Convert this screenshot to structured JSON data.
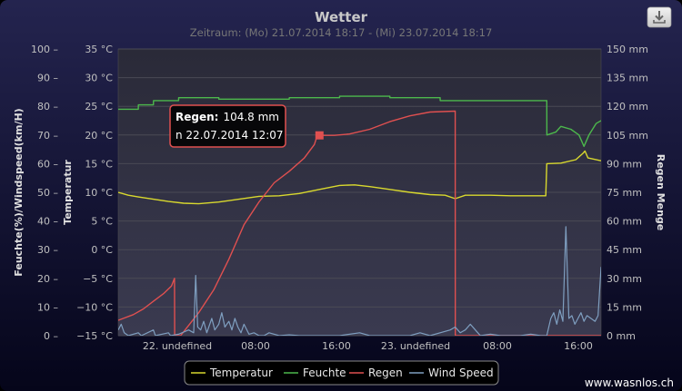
{
  "chart_data": {
    "type": "line",
    "title": "Wetter",
    "subtitle": "Zeitraum: (Mo) 21.07.2014 18:17 - (Mi) 23.07.2014 18:17",
    "x_tick_labels": [
      "22. undefined",
      "08:00",
      "16:00",
      "23. undefined",
      "08:00",
      "16:00"
    ],
    "y_axes": [
      {
        "title": "Feuchte(%)/Windspeed(km/H)",
        "side": "left-outer",
        "ticks": [
          "100 –",
          "90 –",
          "80 –",
          "70 –",
          "60 –",
          "50 –",
          "40 –",
          "30 –",
          "20 –",
          "10 –",
          "0 –"
        ],
        "range": [
          0,
          100
        ]
      },
      {
        "title": "Temperatur",
        "side": "left-inner",
        "ticks": [
          "35 °C",
          "30 °C",
          "25 °C",
          "20 °C",
          "15 °C",
          "10 °C",
          "5 °C",
          "0 °C",
          "−5 °C",
          "−10 °C",
          "−15 °C"
        ],
        "range": [
          -15,
          35
        ]
      },
      {
        "title": "Regen Menge",
        "side": "right",
        "ticks": [
          "150 mm",
          "135 mm",
          "120 mm",
          "105 mm",
          "90 mm",
          "75 mm",
          "60 mm",
          "45 mm",
          "30 mm",
          "15 mm",
          "0 mm"
        ],
        "range": [
          0,
          150
        ]
      }
    ],
    "x_axis": {
      "unit": "hours since first data point",
      "range": [
        0,
        48
      ]
    },
    "series": [
      {
        "name": "Temperatur",
        "color": "#d9d92e",
        "axis": "Temperatur",
        "points": [
          [
            0,
            10
          ],
          [
            1,
            9.5
          ],
          [
            2,
            9.2
          ],
          [
            3.5,
            8.8
          ],
          [
            5,
            8.4
          ],
          [
            6.5,
            8.1
          ],
          [
            8,
            8.0
          ],
          [
            10,
            8.3
          ],
          [
            12,
            8.8
          ],
          [
            14,
            9.3
          ],
          [
            16,
            9.4
          ],
          [
            18,
            9.8
          ],
          [
            20,
            10.5
          ],
          [
            22,
            11.2
          ],
          [
            23.5,
            11.3
          ],
          [
            25,
            11.0
          ],
          [
            27,
            10.5
          ],
          [
            29,
            10.0
          ],
          [
            31,
            9.6
          ],
          [
            32.5,
            9.5
          ],
          [
            33.5,
            8.9
          ],
          [
            34.5,
            9.5
          ],
          [
            37,
            9.5
          ],
          [
            39,
            9.4
          ],
          [
            40.7,
            9.4
          ],
          [
            42.5,
            9.4
          ],
          [
            42.6,
            15.0
          ],
          [
            44,
            15.1
          ],
          [
            45.5,
            15.7
          ],
          [
            46.2,
            16.8
          ],
          [
            46.4,
            17.2
          ],
          [
            46.7,
            16.0
          ],
          [
            48,
            15.5
          ]
        ]
      },
      {
        "name": "Feuchte",
        "color": "#4cb84c",
        "axis": "Feuchte(%)/Windspeed(km/H)",
        "points": [
          [
            0,
            79
          ],
          [
            2,
            79
          ],
          [
            2.01,
            80.5
          ],
          [
            3.5,
            80.5
          ],
          [
            3.51,
            82
          ],
          [
            6,
            82
          ],
          [
            6.01,
            83
          ],
          [
            10,
            83
          ],
          [
            10.01,
            82.5
          ],
          [
            17,
            82.5
          ],
          [
            17.01,
            83
          ],
          [
            22,
            83
          ],
          [
            22.01,
            83.5
          ],
          [
            27,
            83.5
          ],
          [
            27.01,
            83
          ],
          [
            32,
            83
          ],
          [
            32.01,
            82
          ],
          [
            40,
            82
          ],
          [
            42,
            82
          ],
          [
            42.6,
            82
          ],
          [
            42.61,
            70
          ],
          [
            43.5,
            71
          ],
          [
            44,
            73
          ],
          [
            45,
            72
          ],
          [
            45.8,
            70
          ],
          [
            46.3,
            66
          ],
          [
            46.8,
            70
          ],
          [
            47.5,
            74
          ],
          [
            48,
            75
          ]
        ]
      },
      {
        "name": "Regen",
        "color": "#e05050",
        "axis": "Regen Menge",
        "points": [
          [
            0,
            8
          ],
          [
            0.5,
            9
          ],
          [
            1.5,
            11
          ],
          [
            2.5,
            14
          ],
          [
            3.5,
            18
          ],
          [
            4.5,
            22
          ],
          [
            5.3,
            26
          ],
          [
            5.6,
            30
          ],
          [
            5.61,
            0
          ],
          [
            6.2,
            0
          ],
          [
            6.8,
            4
          ],
          [
            8,
            12
          ],
          [
            9.5,
            24
          ],
          [
            11,
            40
          ],
          [
            12.5,
            58
          ],
          [
            14,
            70
          ],
          [
            15.5,
            80
          ],
          [
            17,
            86
          ],
          [
            18.5,
            93
          ],
          [
            19.5,
            100
          ],
          [
            19.8,
            104.8
          ],
          [
            21.5,
            104.8
          ],
          [
            23,
            105.5
          ],
          [
            25,
            108
          ],
          [
            27,
            112
          ],
          [
            29,
            115
          ],
          [
            31,
            117
          ],
          [
            33.5,
            117.5
          ],
          [
            33.51,
            0
          ],
          [
            48,
            0
          ]
        ]
      },
      {
        "name": "Wind Speed",
        "color": "#7f9fc0",
        "axis": "Feuchte(%)/Windspeed(km/H)",
        "points": [
          [
            0,
            2
          ],
          [
            0.3,
            4
          ],
          [
            0.6,
            1
          ],
          [
            1,
            0
          ],
          [
            2,
            1
          ],
          [
            2.3,
            0
          ],
          [
            3.5,
            2
          ],
          [
            3.7,
            0
          ],
          [
            5,
            1
          ],
          [
            5.2,
            0
          ],
          [
            6,
            0.5
          ],
          [
            7,
            2
          ],
          [
            7.5,
            1
          ],
          [
            7.7,
            21
          ],
          [
            7.9,
            3
          ],
          [
            8.2,
            2
          ],
          [
            8.5,
            5
          ],
          [
            8.8,
            1
          ],
          [
            9,
            3
          ],
          [
            9.3,
            6
          ],
          [
            9.6,
            2
          ],
          [
            10,
            4
          ],
          [
            10.3,
            8
          ],
          [
            10.6,
            3
          ],
          [
            11,
            5
          ],
          [
            11.3,
            2
          ],
          [
            11.6,
            6
          ],
          [
            11.9,
            3
          ],
          [
            12.2,
            1
          ],
          [
            12.5,
            4
          ],
          [
            13,
            0.5
          ],
          [
            13.5,
            1
          ],
          [
            14,
            0
          ],
          [
            14.5,
            0
          ],
          [
            15,
            1
          ],
          [
            16,
            0
          ],
          [
            17,
            0.3
          ],
          [
            18,
            0
          ],
          [
            19,
            0
          ],
          [
            20,
            0
          ],
          [
            22,
            0
          ],
          [
            24,
            1
          ],
          [
            25,
            0
          ],
          [
            27,
            0
          ],
          [
            29,
            0
          ],
          [
            30,
            1
          ],
          [
            31,
            0
          ],
          [
            33,
            2
          ],
          [
            33.5,
            3
          ],
          [
            34,
            1
          ],
          [
            34.5,
            2
          ],
          [
            35,
            4
          ],
          [
            35.5,
            2
          ],
          [
            36,
            0
          ],
          [
            37,
            0.5
          ],
          [
            38,
            0
          ],
          [
            40,
            0
          ],
          [
            41,
            0.5
          ],
          [
            42,
            0
          ],
          [
            42.6,
            0
          ],
          [
            43,
            6
          ],
          [
            43.3,
            8
          ],
          [
            43.6,
            4
          ],
          [
            43.9,
            9
          ],
          [
            44.2,
            5
          ],
          [
            44.5,
            38
          ],
          [
            44.8,
            6
          ],
          [
            45.1,
            7
          ],
          [
            45.4,
            4
          ],
          [
            45.7,
            6
          ],
          [
            46,
            8
          ],
          [
            46.3,
            5
          ],
          [
            46.6,
            7
          ],
          [
            47,
            6
          ],
          [
            47.4,
            5
          ],
          [
            47.7,
            7
          ],
          [
            48,
            24
          ]
        ]
      }
    ],
    "tooltip": {
      "label": "Regen:",
      "value": "104.8 mm",
      "time": "n 22.07.2014 12:07",
      "x": 20,
      "y": 104.8
    },
    "legend": {
      "placement": "bottom-center",
      "items": [
        "Temperatur",
        "Feuchte",
        "Regen",
        "Wind Speed"
      ]
    },
    "grid": true,
    "credits": "www.wasnlos.ch",
    "colors": {
      "background_top": "#24244f",
      "background_bottom": "#05051a",
      "plot_top": "#2a2a38",
      "plot_bottom": "#3a3a50",
      "grid": "#4a4a55"
    }
  },
  "toolbar": {
    "export_icon": "download-icon"
  }
}
